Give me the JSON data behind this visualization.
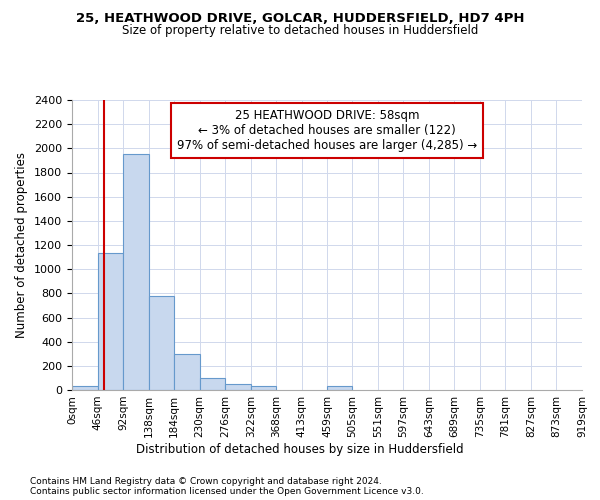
{
  "title1": "25, HEATHWOOD DRIVE, GOLCAR, HUDDERSFIELD, HD7 4PH",
  "title2": "Size of property relative to detached houses in Huddersfield",
  "xlabel": "Distribution of detached houses by size in Huddersfield",
  "ylabel": "Number of detached properties",
  "bin_edges": [
    0,
    46,
    92,
    138,
    184,
    230,
    276,
    322,
    368,
    414,
    460,
    505,
    551,
    597,
    643,
    689,
    735,
    781,
    827,
    873,
    919
  ],
  "bar_heights": [
    30,
    1130,
    1950,
    775,
    295,
    100,
    50,
    35,
    0,
    0,
    30,
    0,
    0,
    0,
    0,
    0,
    0,
    0,
    0,
    0
  ],
  "bar_color": "#c8d8ee",
  "bar_edge_color": "#6699cc",
  "property_size": 58,
  "annotation_title": "25 HEATHWOOD DRIVE: 58sqm",
  "annotation_line1": "← 3% of detached houses are smaller (122)",
  "annotation_line2": "97% of semi-detached houses are larger (4,285) →",
  "red_line_color": "#cc0000",
  "annotation_box_color": "#cc0000",
  "ylim": [
    0,
    2400
  ],
  "yticks": [
    0,
    200,
    400,
    600,
    800,
    1000,
    1200,
    1400,
    1600,
    1800,
    2000,
    2200,
    2400
  ],
  "tick_labels": [
    "0sqm",
    "46sqm",
    "92sqm",
    "138sqm",
    "184sqm",
    "230sqm",
    "276sqm",
    "322sqm",
    "368sqm",
    "413sqm",
    "459sqm",
    "505sqm",
    "551sqm",
    "597sqm",
    "643sqm",
    "689sqm",
    "735sqm",
    "781sqm",
    "827sqm",
    "873sqm",
    "919sqm"
  ],
  "footnote1": "Contains HM Land Registry data © Crown copyright and database right 2024.",
  "footnote2": "Contains public sector information licensed under the Open Government Licence v3.0.",
  "bg_color": "#ffffff",
  "grid_color": "#d0d8ec"
}
